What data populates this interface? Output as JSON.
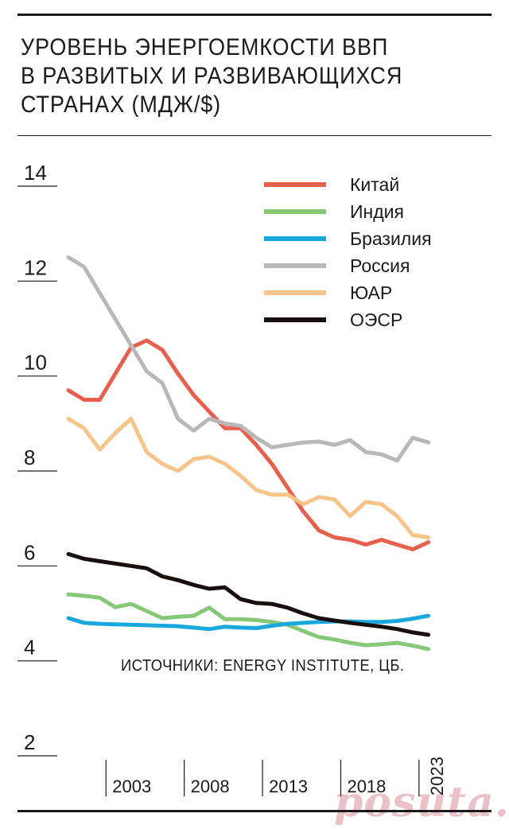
{
  "chart_data": {
    "type": "line",
    "title": "УРОВЕНЬ ЭНЕРГОЕМКОСТИ ВВП\nВ РАЗВИТЫХ И РАЗВИВАЮЩИХСЯ\nСТРАНАХ (МДЖ/$)",
    "xlabel": "",
    "ylabel": "",
    "ylim": [
      2,
      14
    ],
    "xlim": [
      1998,
      2023
    ],
    "yticks": [
      "14",
      "12",
      "10",
      "8",
      "6",
      "4",
      "2"
    ],
    "xticks": [
      "2003",
      "2008",
      "2013",
      "2018",
      "2023"
    ],
    "legend_position": "top-right",
    "grid": false,
    "x": [
      1998,
      1999,
      2000,
      2001,
      2002,
      2003,
      2004,
      2005,
      2006,
      2007,
      2008,
      2009,
      2010,
      2011,
      2012,
      2013,
      2014,
      2015,
      2016,
      2017,
      2018,
      2019,
      2020,
      2021,
      2022,
      2023
    ],
    "series": [
      {
        "name": "Китай",
        "color": "#e8604c",
        "values": [
          9.7,
          9.5,
          9.5,
          10.05,
          10.6,
          10.75,
          10.55,
          10.05,
          9.6,
          9.25,
          8.9,
          8.9,
          8.55,
          8.15,
          7.65,
          7.15,
          6.75,
          6.6,
          6.55,
          6.45,
          6.55,
          6.45,
          6.35,
          6.5,
          null,
          null
        ]
      },
      {
        "name": "Индия",
        "color": "#86c878",
        "values": [
          5.4,
          5.37,
          5.33,
          5.13,
          5.2,
          5.05,
          4.9,
          4.93,
          4.95,
          5.12,
          4.88,
          4.88,
          4.86,
          4.82,
          4.76,
          4.63,
          4.5,
          4.45,
          4.38,
          4.33,
          4.35,
          4.38,
          4.32,
          4.25,
          null,
          null
        ]
      },
      {
        "name": "Бразилия",
        "color": "#1aa8dc",
        "values": [
          4.9,
          4.8,
          4.78,
          4.77,
          4.76,
          4.75,
          4.74,
          4.73,
          4.7,
          4.67,
          4.72,
          4.7,
          4.69,
          4.74,
          4.78,
          4.8,
          4.82,
          4.83,
          4.83,
          4.82,
          4.82,
          4.84,
          4.89,
          4.95,
          null,
          null
        ]
      },
      {
        "name": "Россия",
        "color": "#b8b8b8",
        "values": [
          12.5,
          12.3,
          11.75,
          11.2,
          10.65,
          10.1,
          9.85,
          9.1,
          8.85,
          9.1,
          9.0,
          8.95,
          8.7,
          8.5,
          8.55,
          8.6,
          8.62,
          8.55,
          8.65,
          8.4,
          8.35,
          8.22,
          8.7,
          8.6,
          null,
          null
        ]
      },
      {
        "name": "ЮАР",
        "color": "#f7c48a",
        "values": [
          9.1,
          8.9,
          8.45,
          8.8,
          9.1,
          8.4,
          8.15,
          8.0,
          8.25,
          8.3,
          8.15,
          7.9,
          7.6,
          7.5,
          7.5,
          7.3,
          7.45,
          7.4,
          7.05,
          7.35,
          7.3,
          7.05,
          6.65,
          6.6,
          null,
          null
        ]
      },
      {
        "name": "ОЭСР",
        "color": "#1a0f0f",
        "values": [
          6.25,
          6.15,
          6.1,
          6.05,
          6.0,
          5.95,
          5.78,
          5.7,
          5.6,
          5.52,
          5.55,
          5.3,
          5.22,
          5.2,
          5.12,
          5.0,
          4.9,
          4.85,
          4.8,
          4.76,
          4.72,
          4.67,
          4.6,
          4.55,
          null,
          null
        ]
      }
    ],
    "annotations": [
      "ИСТОЧНИКИ: ENERGY INSTITUTE, ЦБ."
    ]
  },
  "watermark": "posuta.ru"
}
